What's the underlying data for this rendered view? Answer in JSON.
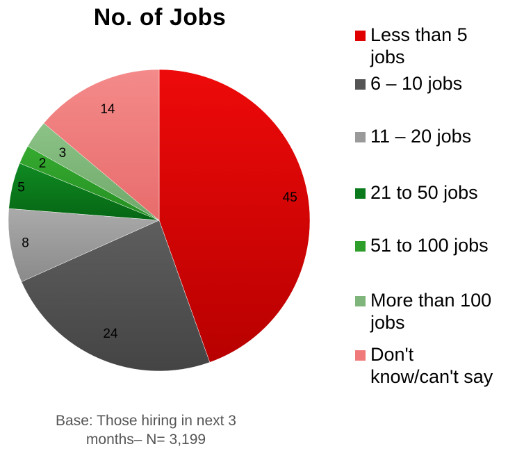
{
  "chart_data": {
    "type": "pie",
    "title": "No. of Jobs",
    "categories": [
      "Less than 5 jobs",
      "6 – 10 jobs",
      "11 – 20 jobs",
      "21 to 50 jobs",
      "51 to 100 jobs",
      "More than 100 jobs",
      "Don't know/can't say"
    ],
    "values": [
      45,
      24,
      8,
      5,
      2,
      3,
      14
    ],
    "colors": [
      "#e00000",
      "#555555",
      "#9a9a9a",
      "#0a7a1c",
      "#2e9e2a",
      "#7fb57a",
      "#f07a7a"
    ],
    "legend_position": "right",
    "start_angle_deg": 0,
    "direction": "clockwise"
  },
  "footnote": {
    "line1": "Base: Those hiring in next 3",
    "line2": "months– N= 3,199"
  }
}
